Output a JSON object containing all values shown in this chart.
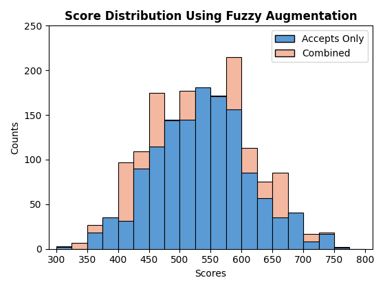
{
  "title": "Score Distribution Using Fuzzy Augmentation",
  "xlabel": "Scores",
  "ylabel": "Counts",
  "bin_edges": [
    300,
    325,
    350,
    375,
    400,
    425,
    450,
    475,
    500,
    525,
    550,
    575,
    600,
    625,
    650,
    675,
    700,
    725,
    750,
    775,
    800
  ],
  "accepts_only_counts": [
    2,
    0,
    18,
    35,
    31,
    90,
    115,
    144,
    145,
    181,
    171,
    156,
    85,
    57,
    35,
    41,
    8,
    17,
    1,
    0
  ],
  "combined_counts": [
    3,
    7,
    27,
    35,
    97,
    109,
    175,
    145,
    177,
    178,
    172,
    215,
    113,
    75,
    85,
    41,
    17,
    18,
    2,
    0
  ],
  "accepts_color": "#5B9BD5",
  "combined_color": "#F4B8A0",
  "accepts_edgecolor": "#000000",
  "combined_edgecolor": "#000000",
  "bar_edgewidth": 0.8,
  "ylim": [
    0,
    250
  ],
  "xlim": [
    287.5,
    812.5
  ],
  "xticks": [
    300,
    350,
    400,
    450,
    500,
    550,
    600,
    650,
    700,
    750,
    800
  ],
  "yticks": [
    0,
    50,
    100,
    150,
    200,
    250
  ],
  "legend_labels": [
    "Accepts Only",
    "Combined"
  ],
  "legend_loc": "upper right",
  "figsize": [
    5.6,
    4.2
  ],
  "dpi": 100,
  "title_fontweight": "bold"
}
